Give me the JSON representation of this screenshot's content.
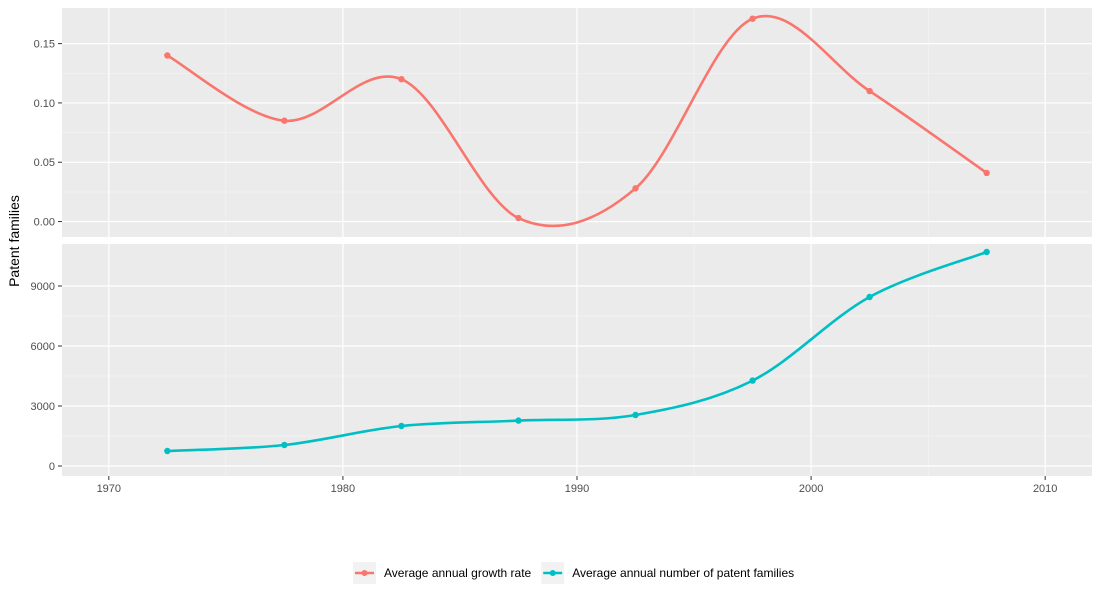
{
  "figure": {
    "ylabel": "Patent families",
    "legend_items": [
      {
        "label": "Average annual growth rate",
        "color": "#F8766D"
      },
      {
        "label": "Average annual number of patent families",
        "color": "#00BFC4"
      }
    ]
  },
  "chart_data": [
    {
      "type": "line",
      "panel": "top",
      "smoothed": true,
      "grid": true,
      "xlim": [
        1968,
        2012
      ],
      "ylim": [
        -0.013,
        0.18
      ],
      "x_ticks": [
        1970,
        1980,
        1990,
        2000,
        2010
      ],
      "y_ticks": [
        0.0,
        0.05,
        0.1,
        0.15
      ],
      "y_tick_labels": [
        "0.00",
        "0.05",
        "0.10",
        "0.15"
      ],
      "series": [
        {
          "name": "Average annual growth rate",
          "color": "#F8766D",
          "x": [
            1972.5,
            1977.5,
            1982.5,
            1987.5,
            1992.5,
            1997.5,
            2002.5,
            2007.5
          ],
          "y": [
            0.14,
            0.085,
            0.12,
            0.003,
            0.028,
            0.171,
            0.11,
            0.041
          ]
        }
      ]
    },
    {
      "type": "line",
      "panel": "bottom",
      "smoothed": true,
      "grid": true,
      "xlim": [
        1968,
        2012
      ],
      "ylim": [
        -500,
        11100
      ],
      "x_ticks": [
        1970,
        1980,
        1990,
        2000,
        2010
      ],
      "x_tick_labels": [
        "1970",
        "1980",
        "1990",
        "2000",
        "2010"
      ],
      "y_ticks": [
        0,
        3000,
        6000,
        9000
      ],
      "y_tick_labels": [
        "0",
        "3000",
        "6000",
        "9000"
      ],
      "series": [
        {
          "name": "Average annual number of patent families",
          "color": "#00BFC4",
          "x": [
            1972.5,
            1977.5,
            1982.5,
            1987.5,
            1992.5,
            1997.5,
            2002.5,
            2007.5
          ],
          "y": [
            750,
            1050,
            2000,
            2270,
            2550,
            4270,
            8450,
            10700
          ]
        }
      ]
    }
  ]
}
